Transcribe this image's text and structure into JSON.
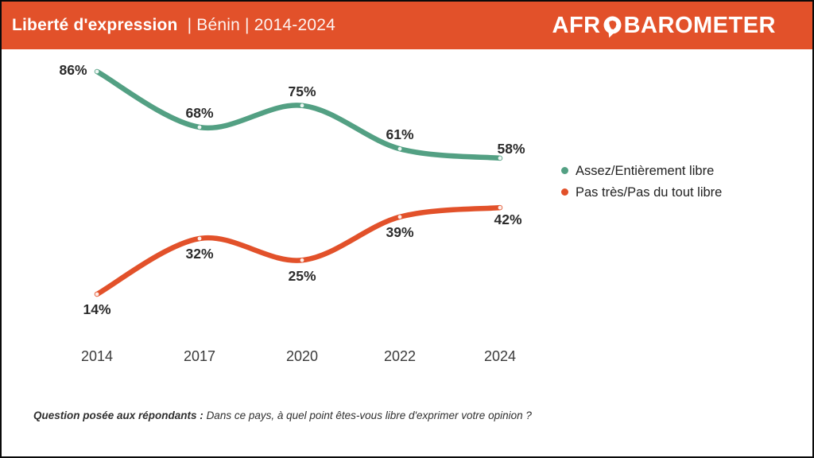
{
  "header": {
    "title_bold": "Liberté d'expression",
    "title_rest": "| Bénin | 2014-2024",
    "logo_prefix": "AFR",
    "logo_suffix": "BAROMETER",
    "background_color": "#E2512A"
  },
  "chart_data": {
    "type": "line",
    "title": "Liberté d'expression | Bénin | 2014-2024",
    "categories": [
      "2014",
      "2017",
      "2020",
      "2022",
      "2024"
    ],
    "series": [
      {
        "name": "Assez/Entièrement libre",
        "color": "#53A083",
        "values": [
          86,
          68,
          75,
          61,
          58
        ]
      },
      {
        "name": "Pas très/Pas du tout libre",
        "color": "#E2512A",
        "values": [
          14,
          32,
          25,
          39,
          42
        ]
      }
    ],
    "value_suffix": "%",
    "ylim": [
      0,
      100
    ],
    "grid": false,
    "legend_position": "right",
    "xlabel": "",
    "ylabel": ""
  },
  "footer": {
    "question_bold": "Question posée aux répondants :",
    "question_text": "Dans ce pays, à quel point êtes-vous libre d'exprimer votre opinion ?"
  }
}
